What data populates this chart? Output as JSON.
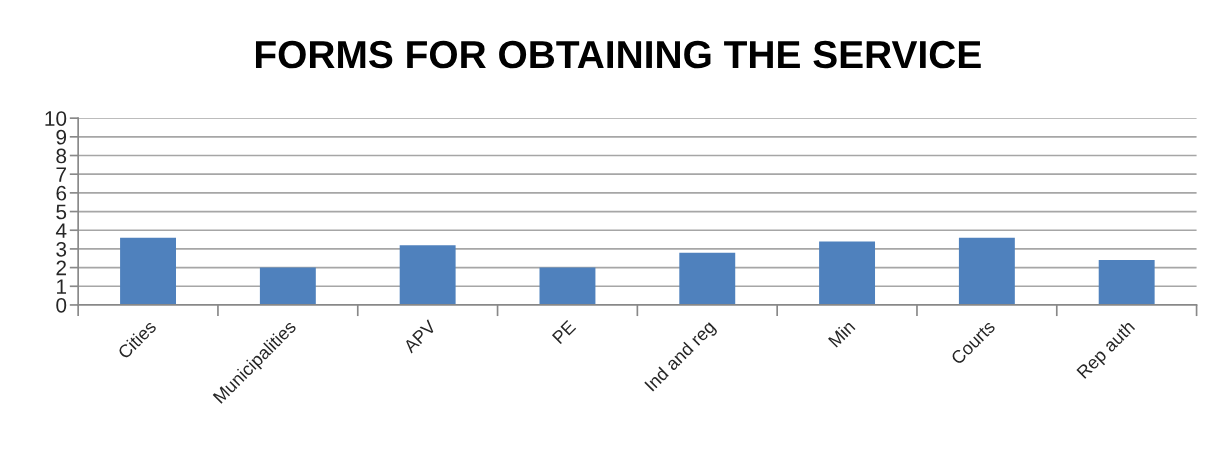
{
  "chart_data": {
    "type": "bar",
    "title": "FORMS FOR OBTAINING THE SERVICE",
    "categories": [
      "Cities",
      "Municipalities",
      "APV",
      "PE",
      "Ind and reg",
      "Min",
      "Courts",
      "Rep auth"
    ],
    "values": [
      3.6,
      2.0,
      3.2,
      2.0,
      2.8,
      3.4,
      3.6,
      2.4
    ],
    "color": "#4f81bd",
    "ylim": [
      0,
      10
    ],
    "yticks": [
      0,
      1,
      2,
      3,
      4,
      5,
      6,
      7,
      8,
      9,
      10
    ],
    "grid": "y"
  }
}
